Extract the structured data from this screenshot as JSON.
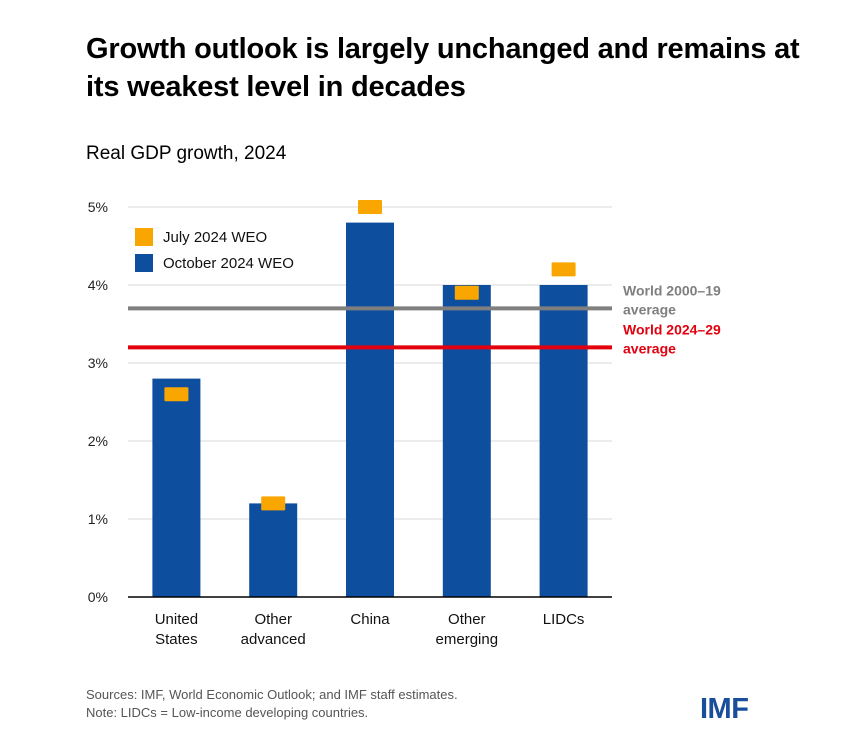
{
  "title": "Growth outlook is largely unchanged and remains at its weakest level in decades",
  "subtitle": "Real GDP growth, 2024",
  "footer": {
    "sources": "Sources: IMF, World Economic Outlook; and IMF staff estimates.",
    "note": "Note: LIDCs = Low-income developing countries."
  },
  "logo": {
    "text": "IMF",
    "color": "#1a4e9c"
  },
  "colors": {
    "october": "#0d4e9f",
    "july": "#f9a700",
    "world_2000_19": "#7f7f7f",
    "world_2024_29": "#e3000f",
    "gridline": "#d9d9d9",
    "axis": "#000000"
  },
  "chart_data": {
    "type": "bar",
    "title": "Growth outlook is largely unchanged and remains at its weakest level in decades",
    "subtitle": "Real GDP growth, 2024",
    "ylim": [
      0,
      5
    ],
    "yticks": [
      0,
      1,
      2,
      3,
      4,
      5
    ],
    "ytick_labels": [
      "0%",
      "1%",
      "2%",
      "3%",
      "4%",
      "5%"
    ],
    "grid": true,
    "legend_position": "top-left",
    "categories": [
      [
        "United",
        "States"
      ],
      [
        "Other",
        "advanced"
      ],
      [
        "China"
      ],
      [
        "Other",
        "emerging"
      ],
      [
        "LIDCs"
      ]
    ],
    "series": [
      {
        "name": "October 2024 WEO",
        "kind": "bar",
        "values": [
          2.8,
          1.2,
          4.8,
          4.0,
          4.0
        ]
      },
      {
        "name": "July 2024 WEO",
        "kind": "marker",
        "values": [
          2.6,
          1.2,
          5.0,
          3.9,
          4.2
        ]
      }
    ],
    "reference_lines": [
      {
        "label": [
          "World 2000–19",
          "average"
        ],
        "value": 3.7,
        "color_key": "world_2000_19"
      },
      {
        "label": [
          "World 2024–29",
          "average"
        ],
        "value": 3.2,
        "color_key": "world_2024_29"
      }
    ]
  }
}
